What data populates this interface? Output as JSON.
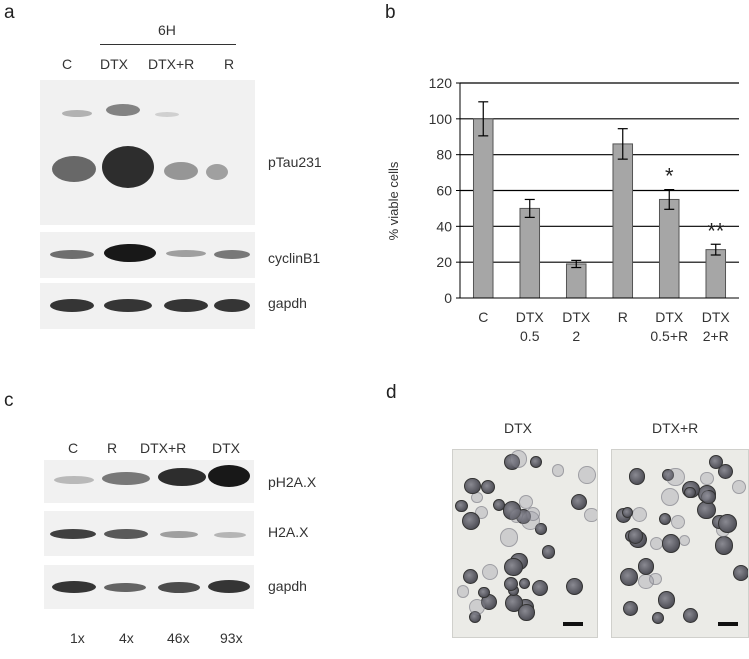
{
  "panel_a": {
    "letter": "a",
    "timepoint": "6H",
    "lanes": [
      "C",
      "DTX",
      "DTX+R",
      "R"
    ],
    "blots": [
      "pTau231",
      "cyclinB1",
      "gapdh"
    ]
  },
  "panel_b": {
    "letter": "b",
    "significance": [
      "*",
      "**"
    ]
  },
  "panel_c": {
    "letter": "c",
    "lanes": [
      "C",
      "R",
      "DTX+R",
      "DTX"
    ],
    "blots": [
      "pH2A.X",
      "H2A.X",
      "gapdh"
    ],
    "fold_changes": [
      "1x",
      "4x",
      "46x",
      "93x"
    ]
  },
  "panel_d": {
    "letter": "d",
    "images": [
      "DTX",
      "DTX+R"
    ]
  },
  "chart_data": {
    "type": "bar",
    "ylabel": "% viable cells",
    "xlabel": "",
    "ylim": [
      0,
      120
    ],
    "yticks": [
      0,
      20,
      40,
      60,
      80,
      100,
      120
    ],
    "categories": [
      [
        "C"
      ],
      [
        "DTX",
        "0.5"
      ],
      [
        "DTX",
        "2"
      ],
      [
        "R"
      ],
      [
        "DTX",
        "0.5+R"
      ],
      [
        "DTX",
        "2+R"
      ]
    ],
    "values": [
      100,
      50,
      19,
      86,
      55,
      27
    ],
    "errors": [
      9.5,
      5,
      2,
      8.5,
      5.5,
      3
    ],
    "annotations": [
      {
        "category_index": 4,
        "text": "*"
      },
      {
        "category_index": 5,
        "text": "**"
      }
    ],
    "bar_color": "#a6a6a6",
    "grid": true
  }
}
